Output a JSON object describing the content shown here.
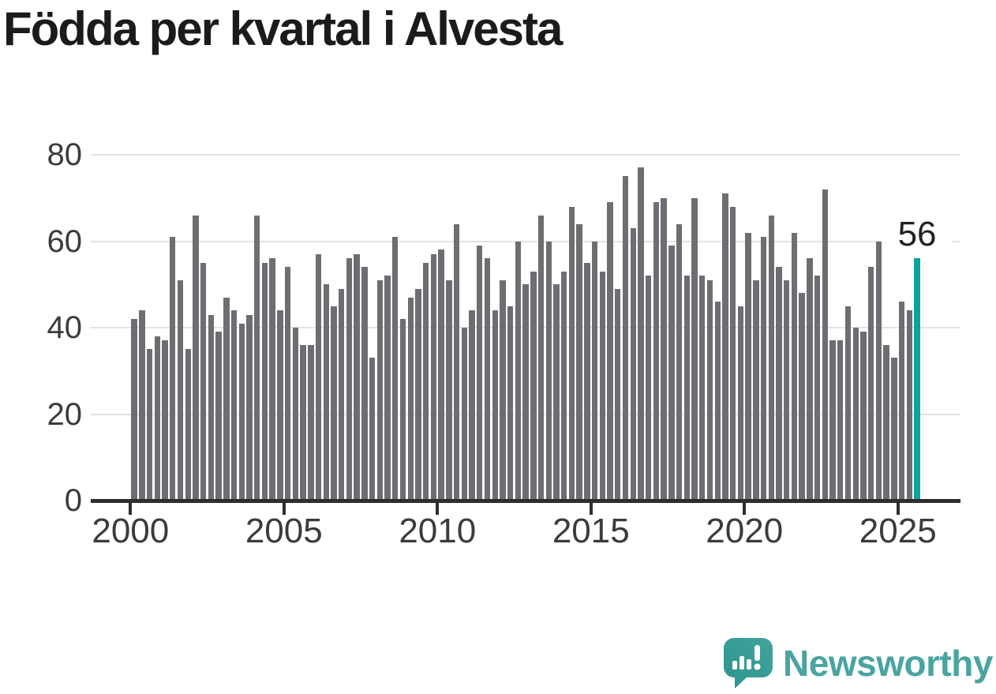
{
  "title": "Födda per kvartal i Alvesta",
  "annotation": {
    "label": "56"
  },
  "branding": {
    "wordmark": "Newsworthy",
    "icon": "newsworthy-speech-bubble-chart-icon"
  },
  "colors": {
    "bar": "#6e6d72",
    "highlight": "#0aa39e",
    "grid": "#e3e3e3",
    "axis": "#2e2e2e",
    "text": "#3b3b3b",
    "logo_teal": "#4aa49f"
  },
  "chart_data": {
    "type": "bar",
    "title": "Födda per kvartal i Alvesta",
    "xlabel": "",
    "ylabel": "",
    "x_start": "2000-Q1",
    "x_end": "2025-Q3",
    "x_frequency": "quarterly",
    "ylim": [
      0,
      80
    ],
    "yticks": [
      0,
      20,
      40,
      60,
      80
    ],
    "xticks": [
      2000,
      2005,
      2010,
      2015,
      2020,
      2025
    ],
    "grid": "horizontal",
    "legend": "none",
    "highlight_index": 102,
    "highlight_value": 56,
    "values": [
      42,
      44,
      35,
      38,
      37,
      61,
      51,
      35,
      66,
      55,
      43,
      39,
      47,
      44,
      41,
      43,
      66,
      55,
      56,
      44,
      54,
      40,
      36,
      36,
      57,
      50,
      45,
      49,
      56,
      57,
      54,
      33,
      51,
      52,
      61,
      42,
      47,
      49,
      55,
      57,
      58,
      51,
      64,
      40,
      44,
      59,
      56,
      44,
      51,
      45,
      60,
      50,
      53,
      66,
      60,
      50,
      53,
      68,
      64,
      55,
      60,
      53,
      69,
      49,
      75,
      63,
      77,
      52,
      69,
      70,
      59,
      64,
      52,
      70,
      52,
      51,
      46,
      71,
      68,
      45,
      62,
      51,
      61,
      66,
      54,
      51,
      62,
      48,
      56,
      52,
      72,
      37,
      37,
      45,
      40,
      39,
      54,
      60,
      36,
      33,
      46,
      44,
      56
    ]
  }
}
